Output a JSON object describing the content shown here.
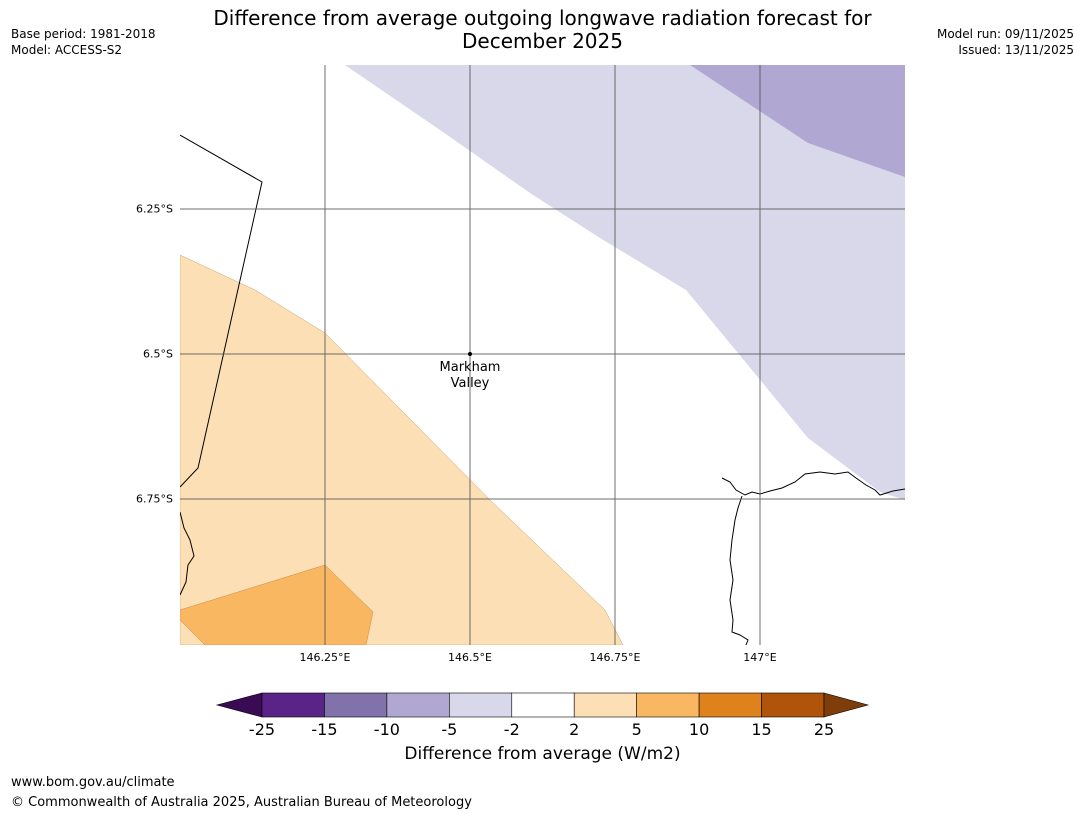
{
  "title": "Difference from average outgoing longwave radiation forecast for December 2025",
  "meta_left": {
    "base_period": "Base period: 1981-2018",
    "model": "Model: ACCESS-S2"
  },
  "meta_right": {
    "model_run": "Model run: 09/11/2025",
    "issued": "Issued: 13/11/2025"
  },
  "map": {
    "lat_labels": [
      "6.25°S",
      "6.5°S",
      "6.75°S"
    ],
    "lon_labels": [
      "146.25°E",
      "146.5°E",
      "146.75°E",
      "147°E"
    ],
    "place": {
      "line1": "Markham",
      "line2": "Valley"
    },
    "region_colors": {
      "light_orange": "#fcdfb5",
      "mid_orange": "#fab762",
      "light_purple": "#d8d8ea",
      "mid_purple": "#b0a8d2"
    }
  },
  "colorbar": {
    "label": "Difference from average (W/m2)",
    "ticks": [
      "-25",
      "-15",
      "-10",
      "-5",
      "-2",
      "2",
      "5",
      "10",
      "15",
      "25"
    ],
    "colors": [
      "#5a2388",
      "#8272ac",
      "#b0a8d2",
      "#d8d8ea",
      "#ffffff",
      "#fcdfb5",
      "#fab762",
      "#e0821c",
      "#b0540a"
    ],
    "min_extend_color": "#3b0a55",
    "max_extend_color": "#7f3d0a"
  },
  "footer": {
    "url": "www.bom.gov.au/climate",
    "copyright": "© Commonwealth of Australia 2025, Australian Bureau of Meteorology"
  }
}
